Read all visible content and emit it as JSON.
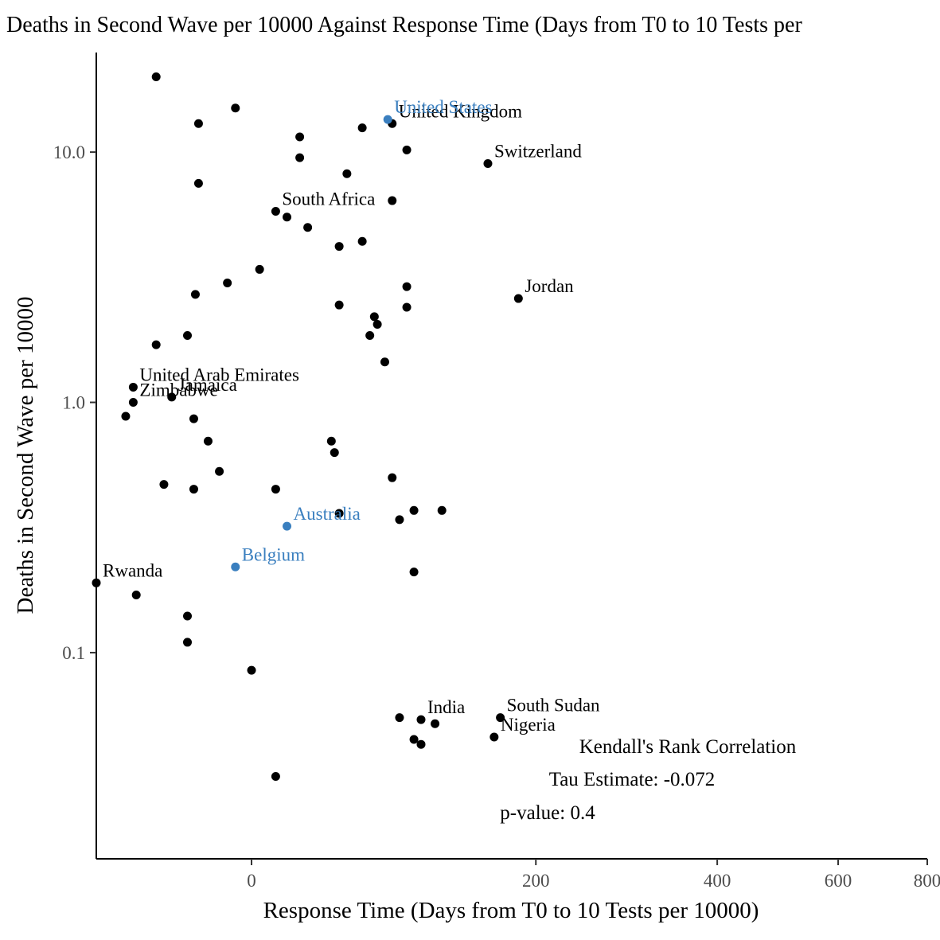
{
  "chart_data": {
    "type": "scatter",
    "title": "Deaths in Second Wave per 10000 Against Response Time (Days from T0 to 10 Tests per",
    "xlabel": "Response Time (Days from T0 to 10 Tests per 10000)",
    "ylabel": "Deaths in Second Wave per 10000",
    "y_scale": "log10",
    "x_scale": "pseudo-log",
    "xlim": [
      -100,
      800
    ],
    "ylim": [
      0.015,
      25
    ],
    "x_ticks": [
      {
        "value": 0,
        "label": "0"
      },
      {
        "value": 200,
        "label": "200"
      },
      {
        "value": 400,
        "label": "400"
      },
      {
        "value": 600,
        "label": "600"
      },
      {
        "value": 800,
        "label": "800"
      }
    ],
    "y_ticks": [
      {
        "value": 0.1,
        "label": "0.1"
      },
      {
        "value": 1,
        "label": "1.0"
      },
      {
        "value": 10,
        "label": "10.0"
      }
    ],
    "grid": false,
    "legend": "none",
    "colors": {
      "default": "#000000",
      "highlight": "#3a7fbf"
    },
    "points": [
      {
        "x": -60,
        "y": 20
      },
      {
        "x": -33,
        "y": 13
      },
      {
        "x": -10,
        "y": 15
      },
      {
        "x": 30,
        "y": 11.5
      },
      {
        "x": 30,
        "y": 9.5
      },
      {
        "x": 70,
        "y": 12.5
      },
      {
        "x": 90,
        "y": 13,
        "label": "United Kingdom"
      },
      {
        "x": 87,
        "y": 13.5,
        "label": "United States",
        "highlight": true
      },
      {
        "x": 100,
        "y": 10.2
      },
      {
        "x": 160,
        "y": 9,
        "label": "Switzerland"
      },
      {
        "x": 60,
        "y": 8.2
      },
      {
        "x": -33,
        "y": 7.5
      },
      {
        "x": 15,
        "y": 5.8,
        "label": "South Africa"
      },
      {
        "x": 22,
        "y": 5.5
      },
      {
        "x": 35,
        "y": 5
      },
      {
        "x": 90,
        "y": 6.4
      },
      {
        "x": 55,
        "y": 4.2
      },
      {
        "x": 70,
        "y": 4.4
      },
      {
        "x": 5,
        "y": 3.4
      },
      {
        "x": -15,
        "y": 3
      },
      {
        "x": -35,
        "y": 2.7
      },
      {
        "x": 100,
        "y": 2.9
      },
      {
        "x": 100,
        "y": 2.4
      },
      {
        "x": 185,
        "y": 2.6,
        "label": "Jordan"
      },
      {
        "x": 55,
        "y": 2.45
      },
      {
        "x": 78,
        "y": 2.2
      },
      {
        "x": 80,
        "y": 2.05
      },
      {
        "x": 75,
        "y": 1.85
      },
      {
        "x": 85,
        "y": 1.45
      },
      {
        "x": -60,
        "y": 1.7
      },
      {
        "x": -40,
        "y": 1.85
      },
      {
        "x": -75,
        "y": 1.15,
        "label": "United Arab Emirates"
      },
      {
        "x": -50,
        "y": 1.05,
        "label": "Jamaica"
      },
      {
        "x": -75,
        "y": 1.0,
        "label": "Zimbabwe"
      },
      {
        "x": -80,
        "y": 0.88
      },
      {
        "x": -36,
        "y": 0.86
      },
      {
        "x": -27,
        "y": 0.7
      },
      {
        "x": -20,
        "y": 0.53
      },
      {
        "x": -55,
        "y": 0.47
      },
      {
        "x": -36,
        "y": 0.45
      },
      {
        "x": 50,
        "y": 0.7
      },
      {
        "x": 52,
        "y": 0.63
      },
      {
        "x": 90,
        "y": 0.5
      },
      {
        "x": 15,
        "y": 0.45
      },
      {
        "x": 55,
        "y": 0.36
      },
      {
        "x": 95,
        "y": 0.34
      },
      {
        "x": 105,
        "y": 0.37
      },
      {
        "x": 125,
        "y": 0.37
      },
      {
        "x": 22,
        "y": 0.32,
        "label": "Australia",
        "highlight": true
      },
      {
        "x": -10,
        "y": 0.22,
        "label": "Belgium",
        "highlight": true
      },
      {
        "x": 105,
        "y": 0.21
      },
      {
        "x": -100,
        "y": 0.19,
        "label": "Rwanda"
      },
      {
        "x": -73,
        "y": 0.17
      },
      {
        "x": -40,
        "y": 0.14
      },
      {
        "x": -40,
        "y": 0.11
      },
      {
        "x": 0,
        "y": 0.085
      },
      {
        "x": 95,
        "y": 0.055
      },
      {
        "x": 110,
        "y": 0.054,
        "label": "India"
      },
      {
        "x": 120,
        "y": 0.052
      },
      {
        "x": 170,
        "y": 0.055,
        "label": "South Sudan"
      },
      {
        "x": 165,
        "y": 0.046,
        "label": "Nigeria"
      },
      {
        "x": 105,
        "y": 0.045
      },
      {
        "x": 110,
        "y": 0.043
      },
      {
        "x": 15,
        "y": 0.032
      }
    ],
    "annotation": {
      "heading": "Kendall's Rank Correlation",
      "tau": "Tau Estimate: -0.072",
      "p_value": "p-value: 0.4"
    }
  }
}
